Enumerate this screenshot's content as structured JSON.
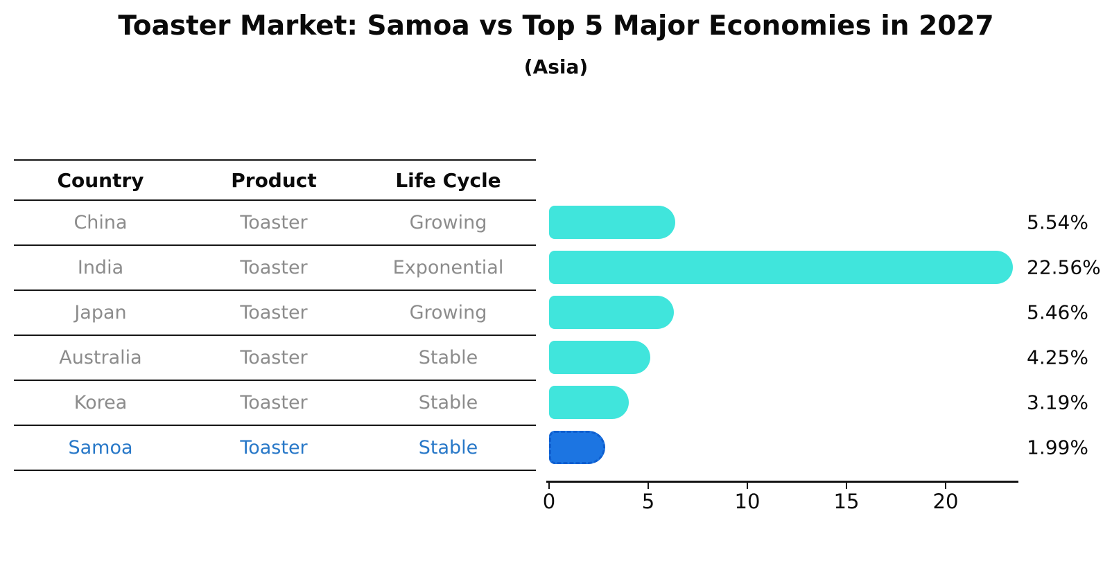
{
  "chart_data": {
    "type": "bar",
    "orientation": "horizontal",
    "title": "Toaster Market: Samoa vs Top 5 Major Economies in 2027",
    "subtitle": "(Asia)",
    "categories": [
      "China",
      "India",
      "Japan",
      "Australia",
      "Korea",
      "Samoa"
    ],
    "values": [
      5.54,
      22.56,
      5.46,
      4.25,
      3.19,
      1.99
    ],
    "labels": [
      "5.54%",
      "22.56%",
      "5.46%",
      "4.25%",
      "3.19%",
      "1.99%"
    ],
    "xticks": [
      0,
      5,
      10,
      15,
      20
    ],
    "xlim": [
      0,
      23.6
    ],
    "grid": false,
    "legend": false,
    "highlight_index": 5,
    "highlight_style": "dashed-outline"
  },
  "table": {
    "headers": [
      "Country",
      "Product",
      "Life Cycle"
    ],
    "rows": [
      {
        "country": "China",
        "product": "Toaster",
        "life_cycle": "Growing",
        "highlight": false
      },
      {
        "country": "India",
        "product": "Toaster",
        "life_cycle": "Exponential",
        "highlight": false
      },
      {
        "country": "Japan",
        "product": "Toaster",
        "life_cycle": "Growing",
        "highlight": false
      },
      {
        "country": "Australia",
        "product": "Toaster",
        "life_cycle": "Stable",
        "highlight": false
      },
      {
        "country": "Korea",
        "product": "Toaster",
        "life_cycle": "Stable",
        "highlight": false
      },
      {
        "country": "Samoa",
        "product": "Toaster",
        "life_cycle": "Stable",
        "highlight": true
      }
    ]
  },
  "colors": {
    "bar_cyan": "#40E5DC",
    "bar_blue": "#1C75E2",
    "bar_blue_border": "#0E5ECF",
    "highlight_text": "#2878C8",
    "muted_text": "#8C8C8C",
    "heading_text": "#0A0A0A",
    "line": "#151515"
  }
}
